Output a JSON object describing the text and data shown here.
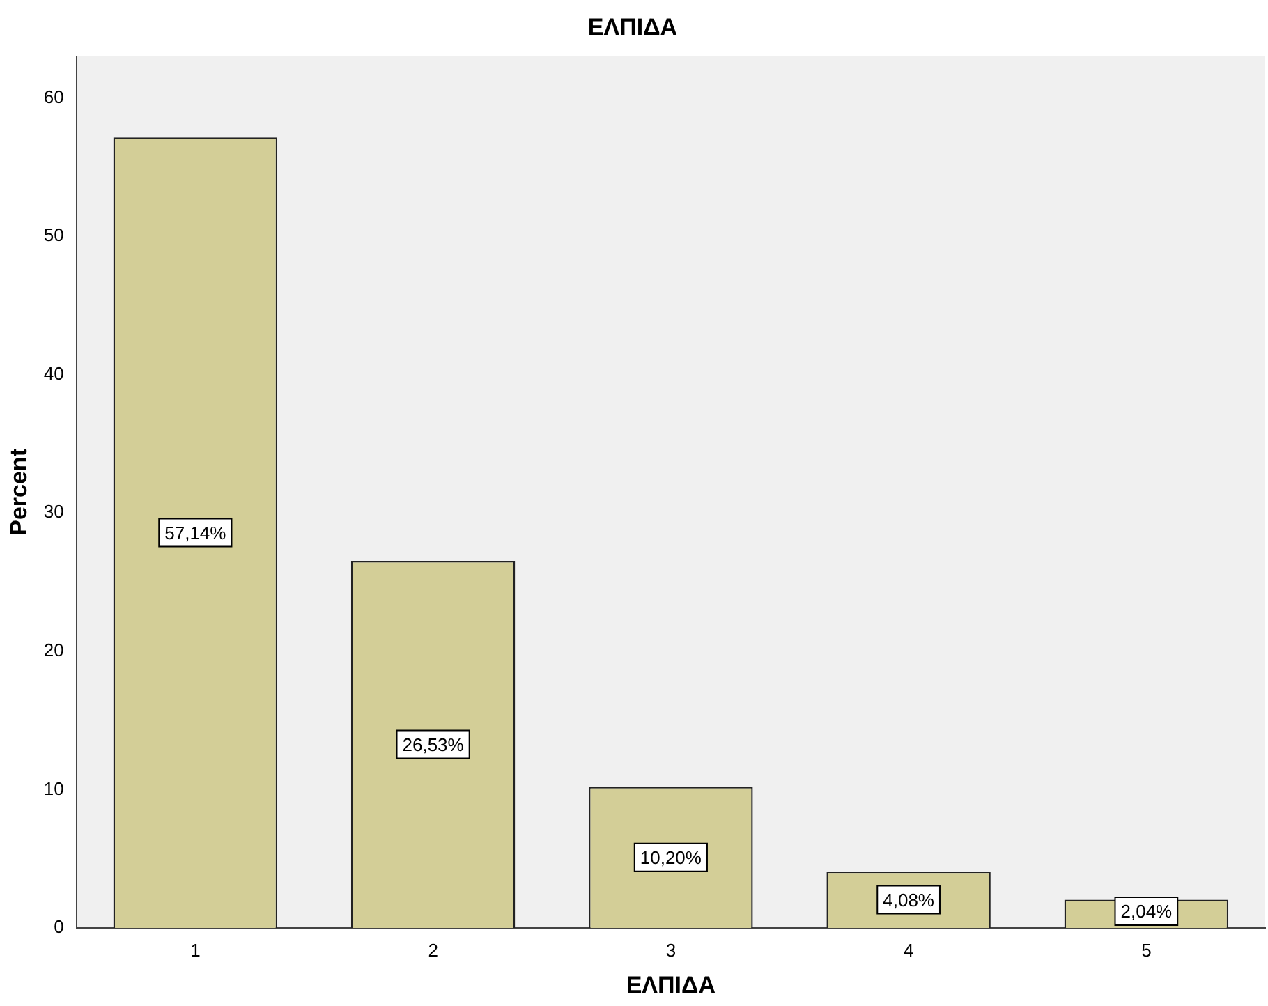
{
  "chart_data": {
    "type": "bar",
    "title": "ΕΛΠΙΔΑ",
    "xlabel": "ΕΛΠΙΔΑ",
    "ylabel": "Percent",
    "categories": [
      "1",
      "2",
      "3",
      "4",
      "5"
    ],
    "values": [
      57.14,
      26.53,
      10.2,
      4.08,
      2.04
    ],
    "value_labels": [
      "57,14%",
      "26,53%",
      "10,20%",
      "4,08%",
      "2,04%"
    ],
    "color": "#d3ce97",
    "ylim": [
      0,
      63
    ],
    "yticks": [
      0,
      10,
      20,
      30,
      40,
      50,
      60
    ],
    "grid": false,
    "legend": false
  }
}
